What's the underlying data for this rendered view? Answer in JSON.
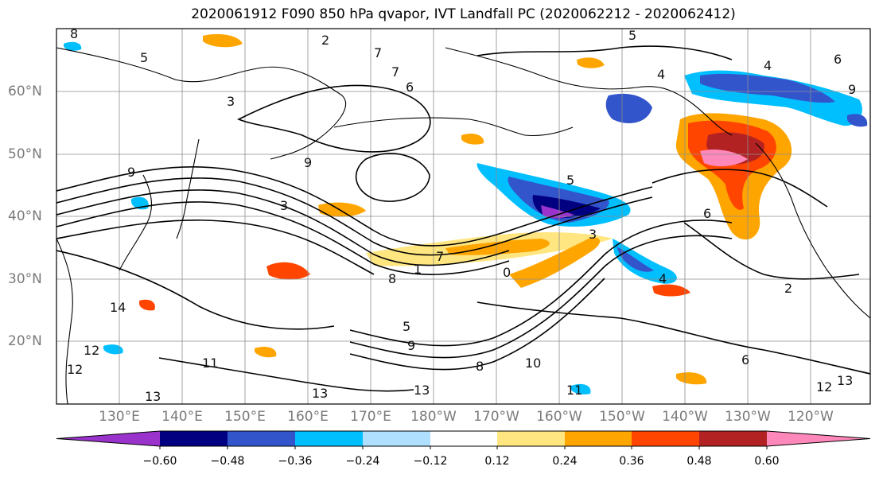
{
  "title": "2020061912 F090 850 hPa qvapor, IVT Landfall PC (2020062212 - 2020062412)",
  "lat_labels": [
    "60°N",
    "50°N",
    "40°N",
    "30°N",
    "20°N"
  ],
  "lon_labels": [
    "130°E",
    "140°E",
    "150°E",
    "160°E",
    "170°E",
    "180°W",
    "170°W",
    "160°W",
    "150°W",
    "140°W",
    "130°W",
    "120°W"
  ],
  "colorbar": {
    "colors": [
      "#9933cc",
      "#000080",
      "#3355cc",
      "#00bfff",
      "#b0e0ff",
      "#ffffff",
      "#ffe680",
      "#ffa500",
      "#ff4500",
      "#b22222",
      "#ff88bb"
    ],
    "ticks": [
      "−0.60",
      "−0.48",
      "−0.36",
      "−0.24",
      "−0.12",
      "0.12",
      "0.24",
      "0.36",
      "0.48",
      "0.60"
    ]
  },
  "contour_labels": [
    "8",
    "5",
    "3",
    "7",
    "6",
    "4",
    "5",
    "4",
    "6",
    "2",
    "7",
    "9",
    "3",
    "5",
    "6",
    "8",
    "1",
    "0",
    "3",
    "9",
    "7",
    "4",
    "9",
    "2",
    "6",
    "14",
    "13",
    "12",
    "11",
    "9",
    "8",
    "10",
    "13",
    "13",
    "12",
    "13",
    "12",
    "11",
    "5"
  ]
}
